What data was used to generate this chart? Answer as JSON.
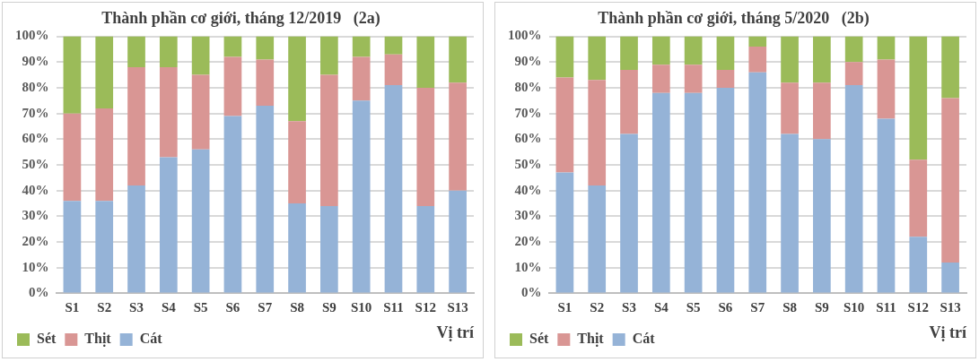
{
  "chart_data": [
    {
      "type": "bar",
      "title": "Thành phần cơ giới, tháng 12/2019   (2a)",
      "xlabel": "Vị trí",
      "stacked": true,
      "grid": "y",
      "legend": "bottom",
      "categories": [
        "S1",
        "S2",
        "S3",
        "S4",
        "S5",
        "S6",
        "S7",
        "S8",
        "S9",
        "S10",
        "S11",
        "S12",
        "S13"
      ],
      "series": [
        {
          "name": "Cát",
          "color": "#95b3d7",
          "values": [
            36,
            36,
            42,
            53,
            56,
            69,
            73,
            35,
            34,
            75,
            81,
            34,
            40
          ]
        },
        {
          "name": "Thịt",
          "color": "#d99694",
          "values": [
            34,
            36,
            46,
            35,
            29,
            23,
            18,
            32,
            51,
            17,
            12,
            46,
            42
          ]
        },
        {
          "name": "Sét",
          "color": "#9bbb59",
          "values": [
            30,
            28,
            12,
            12,
            15,
            8,
            9,
            33,
            15,
            8,
            7,
            20,
            18
          ]
        }
      ],
      "ylim": [
        0,
        100
      ],
      "yticks": [
        {
          "value": 0,
          "label": "0%"
        },
        {
          "value": 10,
          "label": "10%"
        },
        {
          "value": 20,
          "label": "20%"
        },
        {
          "value": 30,
          "label": "30%"
        },
        {
          "value": 40,
          "label": "40%"
        },
        {
          "value": 50,
          "label": "50%"
        },
        {
          "value": 60,
          "label": "60%"
        },
        {
          "value": 70,
          "label": "70%"
        },
        {
          "value": 80,
          "label": "80%"
        },
        {
          "value": 90,
          "label": "90%"
        },
        {
          "value": 100,
          "label": "100%"
        }
      ]
    },
    {
      "type": "bar",
      "title": "Thành phần cơ giới, tháng 5/2020   (2b)",
      "xlabel": "Vị trí",
      "stacked": true,
      "grid": "y",
      "legend": "bottom",
      "categories": [
        "S1",
        "S2",
        "S3",
        "S4",
        "S5",
        "S6",
        "S7",
        "S8",
        "S9",
        "S10",
        "S11",
        "S12",
        "S13"
      ],
      "series": [
        {
          "name": "Cát",
          "color": "#95b3d7",
          "values": [
            47,
            42,
            62,
            78,
            78,
            80,
            86,
            62,
            60,
            81,
            68,
            22,
            12
          ]
        },
        {
          "name": "Thịt",
          "color": "#d99694",
          "values": [
            37,
            41,
            25,
            11,
            11,
            7,
            10,
            20,
            22,
            9,
            23,
            30,
            64
          ]
        },
        {
          "name": "Sét",
          "color": "#9bbb59",
          "values": [
            16,
            17,
            13,
            11,
            11,
            13,
            4,
            18,
            18,
            10,
            9,
            48,
            24
          ]
        }
      ],
      "ylim": [
        0,
        100
      ],
      "yticks": [
        {
          "value": 0,
          "label": "0%"
        },
        {
          "value": 10,
          "label": "10%"
        },
        {
          "value": 20,
          "label": "20%"
        },
        {
          "value": 30,
          "label": "30%"
        },
        {
          "value": 40,
          "label": "40%"
        },
        {
          "value": 50,
          "label": "50%"
        },
        {
          "value": 60,
          "label": "60%"
        },
        {
          "value": 70,
          "label": "70%"
        },
        {
          "value": 80,
          "label": "80%"
        },
        {
          "value": 90,
          "label": "90%"
        },
        {
          "value": 100,
          "label": "100%"
        }
      ]
    }
  ]
}
